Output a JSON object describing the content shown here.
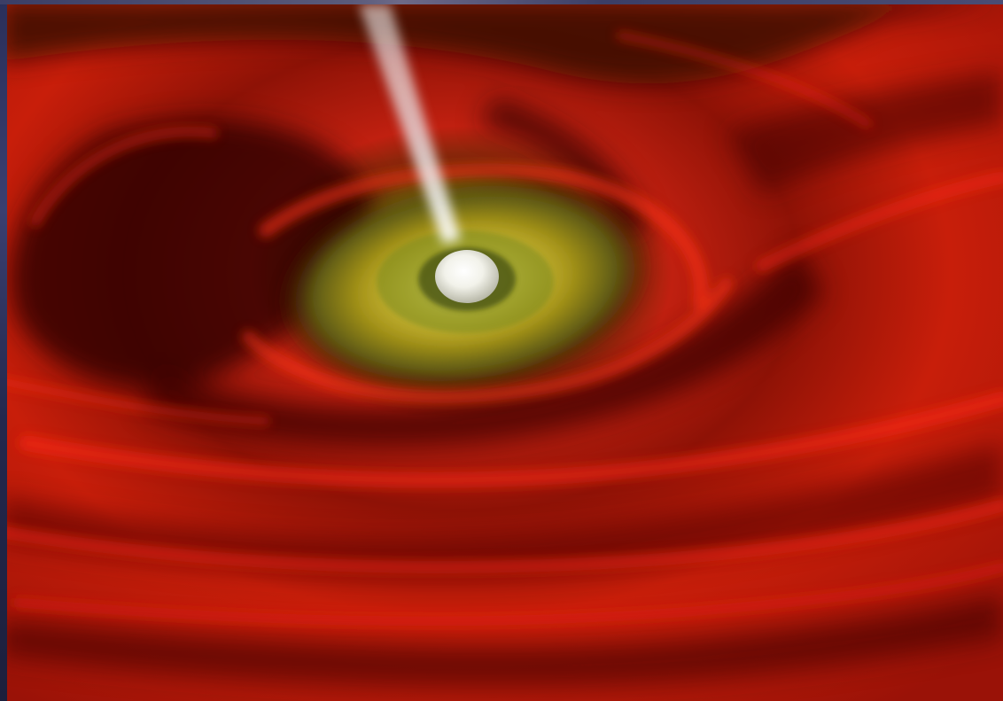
{
  "scene": {
    "subject": "black-hole-accretion-disk",
    "colors": {
      "disk_red": "#c81e0a",
      "disk_dark": "#2a0603",
      "inner_yellow": "#b8a417",
      "inner_green": "#6b7a1a",
      "core_white": "#f2f2ea",
      "jet_white": "#e6e6ea",
      "space_blue": "#2c3160"
    }
  }
}
